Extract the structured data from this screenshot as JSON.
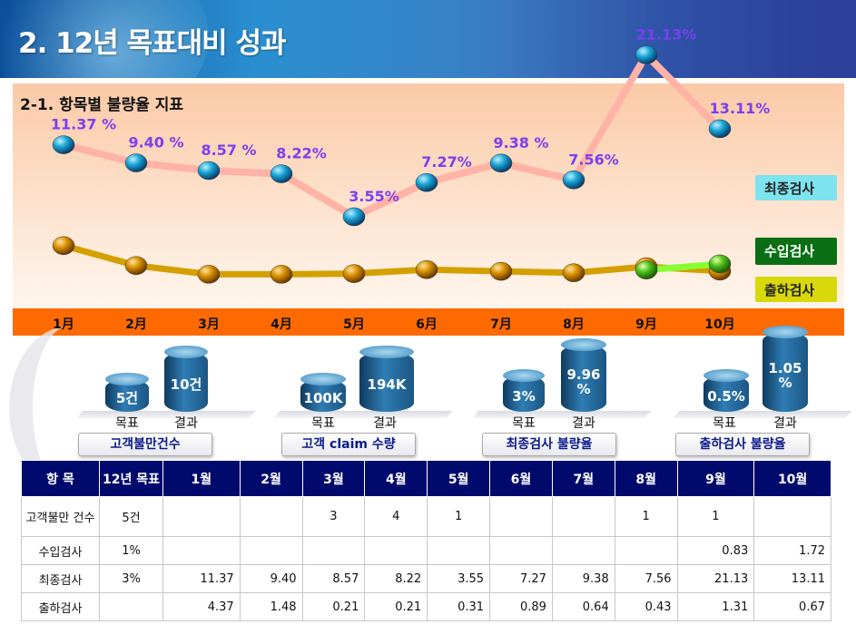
{
  "title": "2. 12년 목표대비 성과",
  "chart_data": {
    "type": "line",
    "title": "2-1. 항목별 불량율 지표",
    "categories": [
      "1月",
      "2月",
      "3月",
      "4月",
      "5月",
      "6月",
      "7月",
      "8月",
      "9月",
      "10月"
    ],
    "series": [
      {
        "name": "최종검사",
        "values": [
          11.37,
          9.4,
          8.57,
          8.22,
          3.55,
          7.27,
          9.38,
          7.56,
          21.13,
          13.11
        ],
        "labels": [
          "11.37 %",
          "9.40 %",
          "8.57 %",
          "8.22%",
          "3.55%",
          "7.27%",
          "9.38 %",
          "7.56%",
          "21.13%",
          "13.11%"
        ],
        "color": "#ffb3a7",
        "marker": "#1a8fd0"
      },
      {
        "name": "수입검사",
        "values": [
          null,
          null,
          null,
          null,
          null,
          null,
          null,
          null,
          0.83,
          1.72
        ],
        "color": "#7fff00",
        "marker": "#3cb01c"
      },
      {
        "name": "출하검사",
        "values": [
          4.37,
          1.48,
          0.21,
          0.21,
          0.31,
          0.89,
          0.64,
          0.43,
          1.31,
          0.67
        ],
        "color": "#d4a000",
        "marker": "#c98a00"
      }
    ],
    "legend_position": "right"
  },
  "kpis": [
    {
      "name": "고객불만건수",
      "target": "5건",
      "result": "10건"
    },
    {
      "name": "고객 claim 수량",
      "target": "100K",
      "result": "194K"
    },
    {
      "name": "최종검사 불량율",
      "target": "3%",
      "result": "9.96 %"
    },
    {
      "name": "출하검사 불량율",
      "target": "0.5%",
      "result": "1.05 %"
    }
  ],
  "kpi_labels": {
    "target": "목표",
    "result": "결과"
  },
  "table": {
    "headers": [
      "항 목",
      "12년 목표",
      "1월",
      "2월",
      "3월",
      "4월",
      "5월",
      "6월",
      "7월",
      "8월",
      "9월",
      "10월"
    ],
    "rows": [
      [
        "고객불만 건수",
        "5건",
        "",
        "",
        "3",
        "4",
        "1",
        "",
        "",
        "1",
        "1",
        ""
      ],
      [
        "수입검사",
        "1%",
        "",
        "",
        "",
        "",
        "",
        "",
        "",
        "",
        "0.83",
        "1.72"
      ],
      [
        "최종검사",
        "3%",
        "11.37",
        "9.40",
        "8.57",
        "8.22",
        "3.55",
        "7.27",
        "9.38",
        "7.56",
        "21.13",
        "13.11"
      ],
      [
        "출하검사",
        "",
        "4.37",
        "1.48",
        "0.21",
        "0.21",
        "0.31",
        "0.89",
        "0.64",
        "0.43",
        "1.31",
        "0.67"
      ]
    ]
  }
}
